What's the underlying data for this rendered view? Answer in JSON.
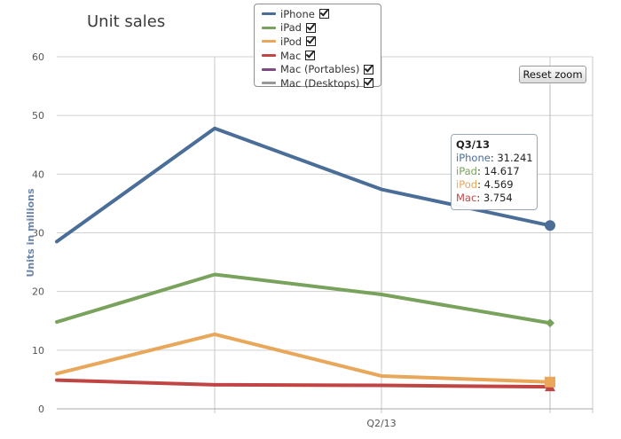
{
  "header": {
    "title": "Unit sales"
  },
  "legend": {
    "items": [
      {
        "label": "iPhone",
        "color": "#4a6e98"
      },
      {
        "label": "iPad",
        "color": "#79a25d"
      },
      {
        "label": "iPod",
        "color": "#e8a75a"
      },
      {
        "label": "Mac",
        "color": "#c14545"
      },
      {
        "label": "Mac (Portables)",
        "color": "#7c4b82"
      },
      {
        "label": "Mac (Desktops)",
        "color": "#999999"
      }
    ]
  },
  "controls": {
    "reset_zoom_label": "Reset zoom"
  },
  "tooltip": {
    "title": "Q3/13",
    "rows": [
      {
        "label": "iPhone",
        "value": "31.241",
        "color": "#4a6e98"
      },
      {
        "label": "iPad",
        "value": "14.617",
        "color": "#79a25d"
      },
      {
        "label": "iPod",
        "value": "4.569",
        "color": "#e8a75a"
      },
      {
        "label": "Mac",
        "value": "3.754",
        "color": "#c14545"
      }
    ]
  },
  "chart_data": {
    "type": "line",
    "title": "Unit sales",
    "ylabel": "Units in millions",
    "xlabel": "",
    "ylim": [
      0,
      60
    ],
    "yticks": [
      0,
      10,
      20,
      30,
      40,
      50,
      60
    ],
    "x_tick_labels": [
      "Q2/13"
    ],
    "x_labels": [
      "",
      "",
      "Q2/13",
      "Q3/13"
    ],
    "grid": true,
    "legend_position": "top",
    "series": [
      {
        "name": "iPhone",
        "color": "#4a6e98",
        "marker": "circle",
        "values": [
          28.5,
          47.8,
          37.4,
          31.241
        ]
      },
      {
        "name": "iPad",
        "color": "#79a25d",
        "marker": "diamond",
        "values": [
          14.8,
          22.9,
          19.5,
          14.617
        ]
      },
      {
        "name": "iPod",
        "color": "#e8a75a",
        "marker": "square",
        "values": [
          6.0,
          12.7,
          5.6,
          4.569
        ]
      },
      {
        "name": "Mac",
        "color": "#c14545",
        "marker": "triangle",
        "values": [
          4.9,
          4.1,
          4.0,
          3.754
        ]
      }
    ]
  }
}
